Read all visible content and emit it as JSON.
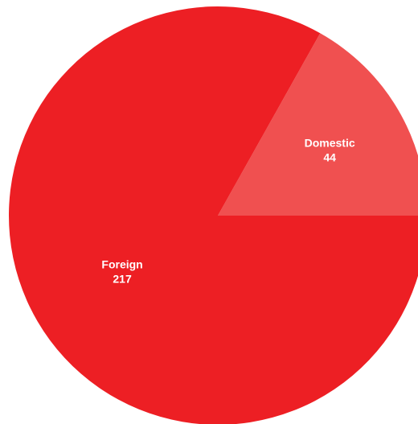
{
  "chart_data": {
    "type": "pie",
    "categories": [
      "Domestic",
      "Foreign"
    ],
    "values": [
      44,
      217
    ],
    "colors": [
      "#f05050",
      "#ed1f24"
    ],
    "labels": [
      {
        "name": "Domestic",
        "value": "44"
      },
      {
        "name": "Foreign",
        "value": "217"
      }
    ]
  }
}
